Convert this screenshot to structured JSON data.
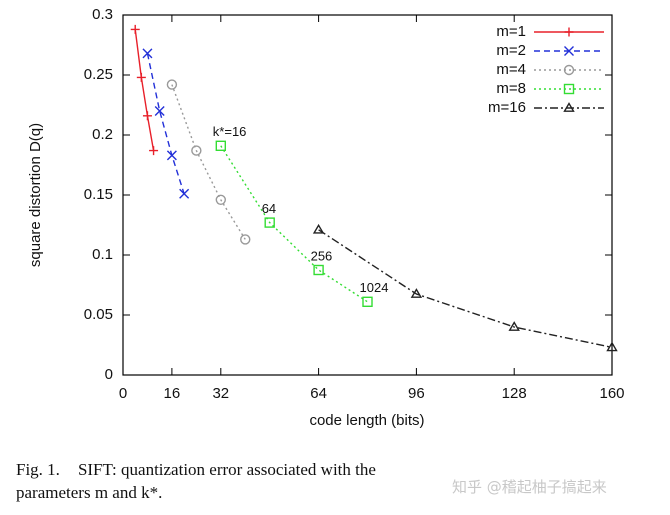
{
  "chart_data": {
    "type": "line",
    "xlabel": "code length (bits)",
    "ylabel": "square distortion D(q)",
    "xlim": [
      0,
      160
    ],
    "ylim": [
      0,
      0.3
    ],
    "xticks": [
      0,
      16,
      32,
      64,
      96,
      128,
      160
    ],
    "yticks": [
      0,
      0.05,
      0.1,
      0.15,
      0.2,
      0.25,
      0.3
    ],
    "legend": "upper right",
    "series": [
      {
        "name": "m=1",
        "color": "#e8202a",
        "dash": "solid",
        "marker": "plus",
        "x": [
          4,
          6,
          8,
          10
        ],
        "values": [
          0.288,
          0.248,
          0.216,
          0.187
        ]
      },
      {
        "name": "m=2",
        "color": "#2230d8",
        "dash": "dashed",
        "marker": "x",
        "x": [
          8,
          12,
          16,
          20
        ],
        "values": [
          0.268,
          0.22,
          0.183,
          0.151
        ]
      },
      {
        "name": "m=4",
        "color": "#999999",
        "dash": "dotted",
        "marker": "circle",
        "x": [
          16,
          24,
          32,
          40
        ],
        "values": [
          0.242,
          0.187,
          0.146,
          0.113
        ]
      },
      {
        "name": "m=8",
        "color": "#33dd33",
        "dash": "dotted",
        "marker": "square",
        "x": [
          32,
          48,
          64,
          80
        ],
        "values": [
          0.191,
          0.127,
          0.0875,
          0.061
        ]
      },
      {
        "name": "m=16",
        "color": "#222222",
        "dash": "dashdot",
        "marker": "triangle",
        "x": [
          64,
          96,
          128,
          160
        ],
        "values": [
          0.121,
          0.0675,
          0.04,
          0.023
        ]
      }
    ],
    "annotations": [
      {
        "text": "k*=16",
        "series": 3,
        "index": 0
      },
      {
        "text": "64",
        "series": 3,
        "index": 1
      },
      {
        "text": "256",
        "series": 3,
        "index": 2
      },
      {
        "text": "1024",
        "series": 3,
        "index": 3
      }
    ]
  },
  "caption": {
    "label": "Fig. 1.",
    "text": "SIFT: quantization error associated with the parameters m and k*."
  },
  "watermark": "知乎 @稽起柚子搞起来"
}
